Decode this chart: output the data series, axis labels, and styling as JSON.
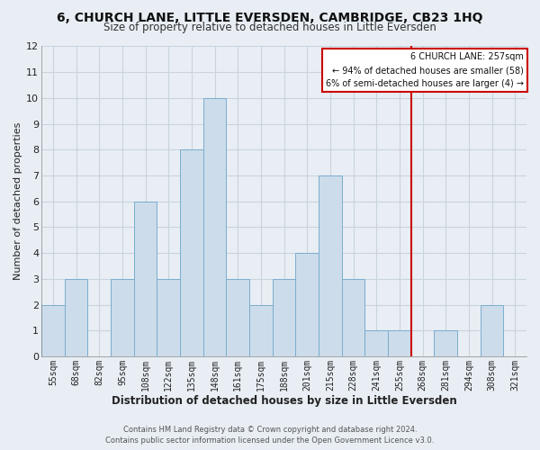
{
  "title": "6, CHURCH LANE, LITTLE EVERSDEN, CAMBRIDGE, CB23 1HQ",
  "subtitle": "Size of property relative to detached houses in Little Eversden",
  "xlabel": "Distribution of detached houses by size in Little Eversden",
  "ylabel": "Number of detached properties",
  "footer_line1": "Contains HM Land Registry data © Crown copyright and database right 2024.",
  "footer_line2": "Contains public sector information licensed under the Open Government Licence v3.0.",
  "categories": [
    "55sqm",
    "68sqm",
    "82sqm",
    "95sqm",
    "108sqm",
    "122sqm",
    "135sqm",
    "148sqm",
    "161sqm",
    "175sqm",
    "188sqm",
    "201sqm",
    "215sqm",
    "228sqm",
    "241sqm",
    "255sqm",
    "268sqm",
    "281sqm",
    "294sqm",
    "308sqm",
    "321sqm"
  ],
  "values": [
    2,
    3,
    0,
    3,
    6,
    3,
    8,
    10,
    3,
    2,
    3,
    4,
    7,
    3,
    1,
    1,
    0,
    1,
    0,
    2,
    0
  ],
  "bar_color": "#ccdcea",
  "bar_edge_color": "#7aadcf",
  "vline_x_index": 15,
  "vline_color": "#cc0000",
  "annotation_title": "6 CHURCH LANE: 257sqm",
  "annotation_line1": "← 94% of detached houses are smaller (58)",
  "annotation_line2": "6% of semi-detached houses are larger (4) →",
  "annotation_box_color": "#cc0000",
  "ylim": [
    0,
    12
  ],
  "plot_bg_color": "#e8eef4",
  "fig_bg_color": "#e8eef4",
  "grid_color": "#c8d4de",
  "title_fontsize": 10,
  "subtitle_fontsize": 8.5
}
